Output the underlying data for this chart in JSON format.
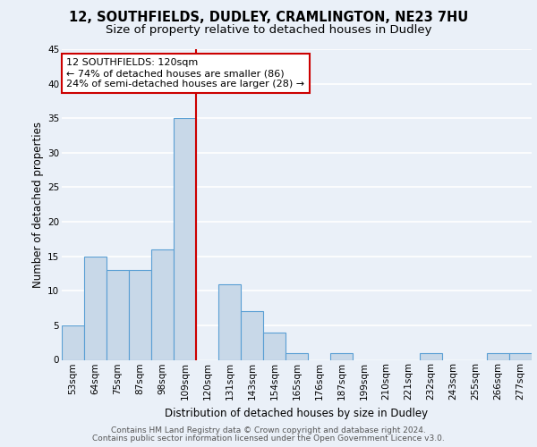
{
  "title_line1": "12, SOUTHFIELDS, DUDLEY, CRAMLINGTON, NE23 7HU",
  "title_line2": "Size of property relative to detached houses in Dudley",
  "xlabel": "Distribution of detached houses by size in Dudley",
  "ylabel": "Number of detached properties",
  "categories": [
    "53sqm",
    "64sqm",
    "75sqm",
    "87sqm",
    "98sqm",
    "109sqm",
    "120sqm",
    "131sqm",
    "143sqm",
    "154sqm",
    "165sqm",
    "176sqm",
    "187sqm",
    "199sqm",
    "210sqm",
    "221sqm",
    "232sqm",
    "243sqm",
    "255sqm",
    "266sqm",
    "277sqm"
  ],
  "values": [
    5,
    15,
    13,
    13,
    16,
    35,
    0,
    11,
    7,
    4,
    1,
    0,
    1,
    0,
    0,
    0,
    1,
    0,
    0,
    1,
    1
  ],
  "bar_color": "#c8d8e8",
  "bar_edge_color": "#5a9fd4",
  "highlight_index": 5,
  "vline_color": "#cc0000",
  "annotation_text": "12 SOUTHFIELDS: 120sqm\n← 74% of detached houses are smaller (86)\n24% of semi-detached houses are larger (28) →",
  "annotation_box_color": "#ffffff",
  "annotation_box_edge": "#cc0000",
  "ylim": [
    0,
    45
  ],
  "yticks": [
    0,
    5,
    10,
    15,
    20,
    25,
    30,
    35,
    40,
    45
  ],
  "background_color": "#eaf0f8",
  "plot_background": "#eaf0f8",
  "grid_color": "#ffffff",
  "footer_line1": "Contains HM Land Registry data © Crown copyright and database right 2024.",
  "footer_line2": "Contains public sector information licensed under the Open Government Licence v3.0.",
  "title_fontsize": 10.5,
  "subtitle_fontsize": 9.5,
  "axis_label_fontsize": 8.5,
  "tick_fontsize": 7.5,
  "annotation_fontsize": 8,
  "footer_fontsize": 6.5
}
